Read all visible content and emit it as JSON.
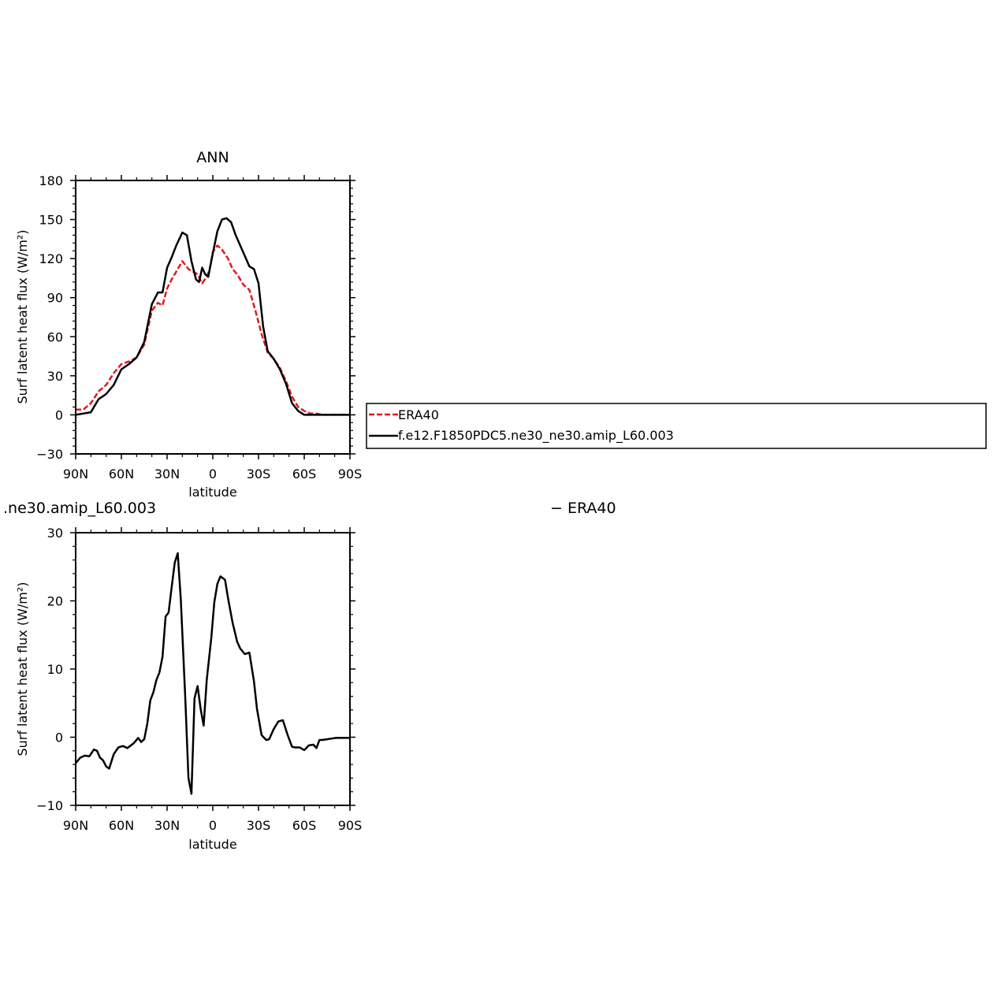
{
  "chart_data": [
    {
      "type": "line",
      "title": "ANN",
      "xlabel": "latitude",
      "ylabel": "Surf latent heat flux (W/m²)",
      "xlim": [
        90,
        -90
      ],
      "ylim": [
        -30,
        180
      ],
      "xticks": [
        90,
        60,
        30,
        0,
        -30,
        -60,
        -90
      ],
      "xtick_labels": [
        "90N",
        "60N",
        "30N",
        "0",
        "30S",
        "60S",
        "90S"
      ],
      "yticks": [
        -30,
        0,
        30,
        60,
        90,
        120,
        150,
        180
      ],
      "ytick_labels": [
        "−30",
        "0",
        "30",
        "60",
        "90",
        "120",
        "150",
        "180"
      ],
      "legend": "right, boxed",
      "series": [
        {
          "name": "ERA40",
          "color": "#e0191e",
          "dash": "dashed",
          "x": [
            90,
            85,
            80,
            75,
            70,
            65,
            60,
            55,
            50,
            45,
            40,
            36,
            33,
            30,
            27,
            24,
            20,
            16,
            13,
            10,
            7,
            4,
            2,
            0,
            -3,
            -6,
            -10,
            -13,
            -16,
            -20,
            -24,
            -28,
            -32,
            -36,
            -40,
            -44,
            -48,
            -52,
            -56,
            -60,
            -64,
            -68,
            -72,
            -76,
            -80,
            -85,
            -90
          ],
          "values": [
            4,
            4,
            9,
            18,
            23,
            32,
            39,
            41,
            44,
            54,
            80,
            86,
            84,
            97,
            104,
            110,
            118,
            112,
            110,
            108,
            101,
            106,
            112,
            125,
            130,
            127,
            120,
            112,
            108,
            100,
            96,
            80,
            62,
            48,
            43,
            36,
            26,
            14,
            6,
            3,
            1,
            1,
            0,
            0,
            0,
            0,
            0
          ]
        },
        {
          "name": "f.e12.F1850PDC5.ne30_ne30.amip_L60.003",
          "color": "#000000",
          "dash": "solid",
          "x": [
            90,
            85,
            80,
            75,
            70,
            65,
            60,
            55,
            50,
            45,
            40,
            36,
            33,
            30,
            27,
            24,
            20,
            17,
            14,
            11,
            9,
            7,
            5,
            3,
            0,
            -3,
            -6,
            -9,
            -12,
            -15,
            -18,
            -21,
            -24,
            -27,
            -30,
            -33,
            -36,
            -40,
            -44,
            -48,
            -52,
            -56,
            -60,
            -64,
            -68,
            -72,
            -76,
            -80,
            -85,
            -90
          ],
          "values": [
            0,
            1,
            2,
            12,
            16,
            23,
            35,
            39,
            44,
            56,
            85,
            94,
            94,
            113,
            121,
            130,
            140,
            138,
            118,
            104,
            102,
            113,
            108,
            106,
            124,
            141,
            150,
            151,
            148,
            138,
            130,
            122,
            114,
            112,
            101,
            68,
            49,
            43,
            35,
            24,
            9,
            3,
            0,
            0,
            0,
            0,
            0,
            0,
            0,
            0
          ]
        }
      ]
    },
    {
      "type": "line",
      "title": "",
      "left_caption": ".ne30.amip_L60.003",
      "right_caption": "− ERA40",
      "xlabel": "latitude",
      "ylabel": "Surf latent heat flux (W/m²)",
      "xlim": [
        90,
        -90
      ],
      "ylim": [
        -10,
        30
      ],
      "xticks": [
        90,
        60,
        30,
        0,
        -30,
        -60,
        -90
      ],
      "xtick_labels": [
        "90N",
        "60N",
        "30N",
        "0",
        "30S",
        "60S",
        "90S"
      ],
      "yticks": [
        -10,
        0,
        10,
        20,
        30
      ],
      "ytick_labels": [
        "−10",
        "0",
        "10",
        "20",
        "30"
      ],
      "series": [
        {
          "name": "",
          "color": "#000000",
          "dash": "solid",
          "x": [
            90,
            87,
            84,
            81,
            78,
            76,
            74,
            72,
            70,
            68,
            65,
            62,
            59,
            56,
            52,
            49,
            47,
            45,
            43,
            41,
            39,
            37,
            35,
            33,
            31,
            29,
            27,
            25,
            23,
            21,
            18,
            16,
            14,
            12,
            10,
            8,
            6,
            4,
            1,
            -1,
            -3,
            -5,
            -8,
            -10,
            -13,
            -16,
            -18,
            -21,
            -24,
            -27,
            -29,
            -32,
            -35,
            -37,
            -40,
            -43,
            -46,
            -49,
            -52,
            -54,
            -57,
            -60,
            -63,
            -66,
            -68,
            -70,
            -72,
            -75,
            -78,
            -81,
            -84,
            -86,
            -88,
            -90
          ],
          "values": [
            -3.8,
            -3,
            -2.7,
            -2.8,
            -1.8,
            -2,
            -3,
            -3.4,
            -4.3,
            -4.6,
            -2.5,
            -1.5,
            -1.3,
            -1.6,
            -0.9,
            -0.1,
            -0.7,
            -0.3,
            2,
            5.4,
            6.6,
            8.4,
            9.5,
            11.8,
            17.7,
            18.3,
            22,
            25.6,
            27,
            20.2,
            5.4,
            -6,
            -8.3,
            5.7,
            7.5,
            4.2,
            1.7,
            8.4,
            14.6,
            19.8,
            22.5,
            23.6,
            23.1,
            20.4,
            16.8,
            14,
            13,
            12.2,
            12.4,
            8.2,
            4.1,
            0.3,
            -0.4,
            -0.3,
            1.2,
            2.3,
            2.5,
            0.4,
            -1.4,
            -1.5,
            -1.5,
            -1.9,
            -1.2,
            -1.1,
            -1.6,
            -0.4,
            -0.4,
            -0.3,
            -0.2,
            -0.1,
            -0.1,
            -0.1,
            -0.1,
            -0.1
          ]
        }
      ]
    }
  ]
}
